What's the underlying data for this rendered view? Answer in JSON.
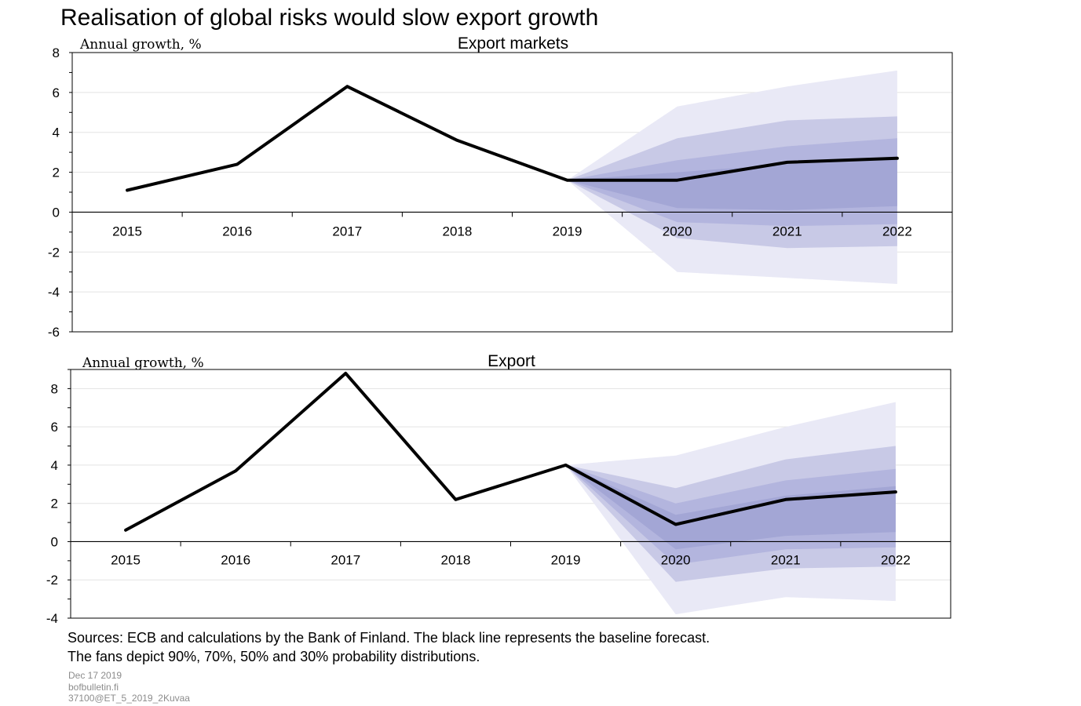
{
  "title": "Realisation of global risks would slow export growth",
  "fan_colors": [
    "#e9e9f6",
    "#c8c9e6",
    "#b3b5de",
    "#a3a6d5"
  ],
  "line_color": "#000000",
  "chart_data": [
    {
      "type": "line",
      "title": "Export markets",
      "ylabel": "Annual growth, %",
      "ylim": [
        -6,
        8
      ],
      "yticks": [
        -6,
        -4,
        -2,
        0,
        2,
        4,
        6,
        8
      ],
      "grid": true,
      "categories": [
        "2015",
        "2016",
        "2017",
        "2018",
        "2019",
        "2020",
        "2021",
        "2022"
      ],
      "series": [
        {
          "values": [
            1.1,
            2.4,
            6.3,
            3.6,
            1.6,
            1.6,
            2.5,
            2.7
          ]
        }
      ],
      "fans": [
        {
          "probability": "90%",
          "lower": [
            1.6,
            -3.0,
            -3.3,
            -3.6
          ],
          "upper": [
            1.6,
            5.3,
            6.3,
            7.1
          ]
        },
        {
          "probability": "70%",
          "lower": [
            1.6,
            -1.3,
            -1.8,
            -1.7
          ],
          "upper": [
            1.6,
            3.7,
            4.6,
            4.8
          ]
        },
        {
          "probability": "50%",
          "lower": [
            1.6,
            -0.5,
            -0.7,
            -0.6
          ],
          "upper": [
            1.6,
            2.6,
            3.3,
            3.7
          ]
        },
        {
          "probability": "30%",
          "lower": [
            1.6,
            0.2,
            0.1,
            0.3
          ],
          "upper": [
            1.6,
            2.0,
            2.4,
            2.8
          ]
        }
      ]
    },
    {
      "type": "line",
      "title": "Export",
      "ylabel": "Annual growth, %",
      "ylim": [
        -4,
        9
      ],
      "yticks": [
        -4,
        -2,
        0,
        2,
        4,
        6,
        8
      ],
      "grid": true,
      "categories": [
        "2015",
        "2016",
        "2017",
        "2018",
        "2019",
        "2020",
        "2021",
        "2022"
      ],
      "series": [
        {
          "values": [
            0.6,
            3.7,
            8.8,
            2.2,
            4.0,
            0.9,
            2.2,
            2.6
          ]
        }
      ],
      "fans": [
        {
          "probability": "90%",
          "lower": [
            4.0,
            -3.8,
            -2.9,
            -3.1
          ],
          "upper": [
            4.0,
            4.5,
            6.0,
            7.3
          ]
        },
        {
          "probability": "70%",
          "lower": [
            4.0,
            -2.1,
            -1.4,
            -1.3
          ],
          "upper": [
            4.0,
            2.8,
            4.3,
            5.0
          ]
        },
        {
          "probability": "50%",
          "lower": [
            4.0,
            -1.2,
            -0.4,
            -0.3
          ],
          "upper": [
            4.0,
            2.0,
            3.2,
            3.8
          ]
        },
        {
          "probability": "30%",
          "lower": [
            4.0,
            -0.4,
            0.3,
            0.5
          ],
          "upper": [
            4.0,
            1.4,
            2.4,
            2.9
          ]
        }
      ]
    }
  ],
  "sources": {
    "line1": "Sources: ECB and calculations by the Bank of Finland. The black line represents the baseline forecast.",
    "line2": "The fans depict 90%, 70%, 50% and 30% probability distributions."
  },
  "meta": {
    "date": "Dec 17 2019",
    "site": "bofbulletin.fi",
    "code": "37100@ET_5_2019_2Kuvaa"
  }
}
